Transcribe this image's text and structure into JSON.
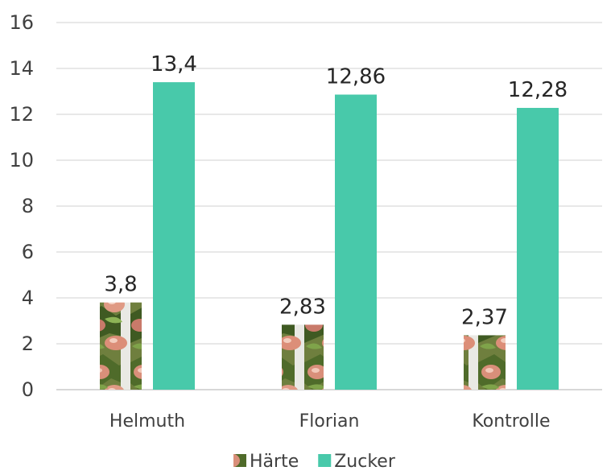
{
  "chart_data": {
    "type": "bar",
    "title": "",
    "xlabel": "",
    "ylabel": "",
    "categories": [
      "Helmuth",
      "Florian",
      "Kontrolle"
    ],
    "series": [
      {
        "name": "Härte",
        "values": [
          3.8,
          2.83,
          2.37
        ],
        "labels": [
          "3,8",
          "2,83",
          "2,37"
        ],
        "fill": "apple-photo-texture",
        "color": "#8a6a3c"
      },
      {
        "name": "Zucker",
        "values": [
          13.4,
          12.86,
          12.28
        ],
        "labels": [
          "13,4",
          "12,86",
          "12,28"
        ],
        "color": "#48c9aa"
      }
    ],
    "ylim": [
      0,
      16
    ],
    "yticks": [
      0,
      2,
      4,
      6,
      8,
      10,
      12,
      14,
      16
    ],
    "grid": true,
    "legend_position": "bottom"
  },
  "colors": {
    "grid": "#d9d9d9",
    "axis": "#bfbfbf",
    "text": "#404040"
  }
}
